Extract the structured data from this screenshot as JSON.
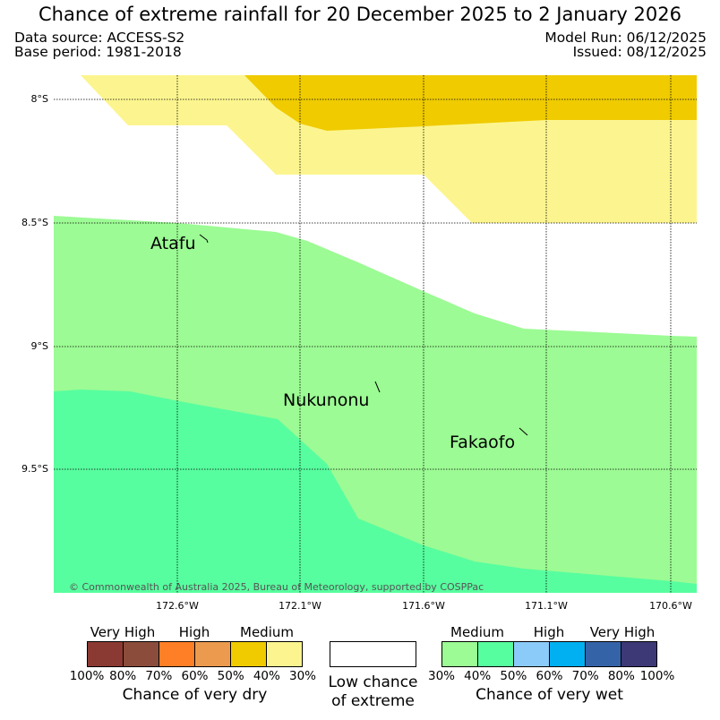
{
  "title": "Chance of extreme rainfall for 20 December 2025 to 2 January 2026",
  "header": {
    "data_source": "Data source: ACCESS-S2",
    "base_period": "Base period: 1981-2018",
    "model_run": "Model Run: 06/12/2025",
    "issued": "Issued: 08/12/2025"
  },
  "map": {
    "lat_labels": [
      "8°S",
      "8.5°S",
      "9°S",
      "9.5°S"
    ],
    "lon_labels": [
      "172.6°W",
      "172.1°W",
      "171.6°W",
      "171.1°W",
      "170.6°W"
    ],
    "places": [
      "Atafu",
      "Nukunonu",
      "Fakaofo"
    ],
    "copyright": "© Commonwealth of Australia 2025, Bureau of Meteorology, supported by COSPPac",
    "colors": {
      "dry_medium_high": "#efcb00",
      "dry_medium_low": "#fcf58f",
      "wet_medium": "#9cfb94",
      "wet_medium_high": "#57fe9f",
      "grid": "#000000"
    }
  },
  "legend": {
    "dry": {
      "groups": [
        "Very High",
        "High",
        "Medium"
      ],
      "ticks": [
        "100%",
        "80%",
        "70%",
        "60%",
        "50%",
        "40%",
        "30%"
      ],
      "colors": [
        "#8b3a33",
        "#8b4c3b",
        "#ff7f27",
        "#ec9b4e",
        "#efcb00",
        "#fcf58f"
      ],
      "caption": "Chance of very dry"
    },
    "neutral": {
      "caption_line1": "Low chance",
      "caption_line2": "of extreme",
      "color": "#ffffff"
    },
    "wet": {
      "groups": [
        "Medium",
        "High",
        "Very High"
      ],
      "ticks": [
        "30%",
        "40%",
        "50%",
        "60%",
        "70%",
        "80%",
        "100%"
      ],
      "colors": [
        "#9cfb94",
        "#57fe9f",
        "#8bcbf9",
        "#00b0f0",
        "#3563a8",
        "#3c3976"
      ],
      "caption": "Chance of very wet"
    }
  }
}
